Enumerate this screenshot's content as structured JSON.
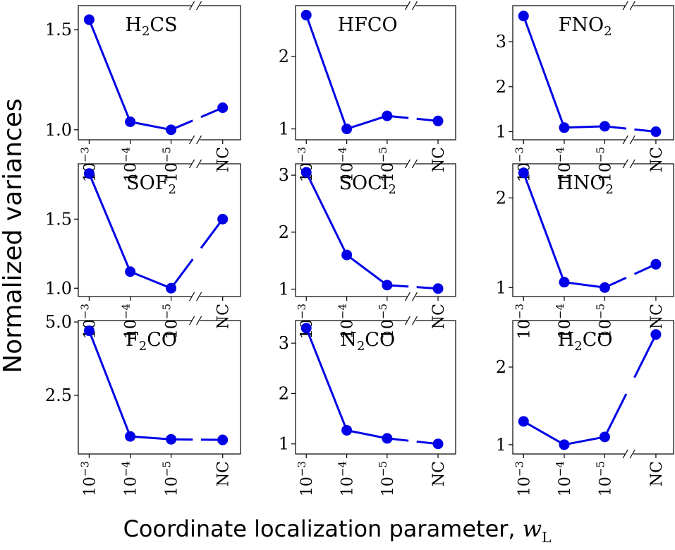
{
  "figure": {
    "ylabel": "Normalized variances",
    "xlabel": "Coordinate localization parameter,",
    "xlabel_var": "w",
    "xlabel_sub": "L"
  },
  "colors": {
    "series": "#0000e6",
    "axis": "#000000"
  },
  "x_tick_labels": [
    {
      "base": "10",
      "exp": "−3"
    },
    {
      "base": "10",
      "exp": "−4"
    },
    {
      "base": "10",
      "exp": "−5"
    },
    {
      "base": "NC",
      "exp": ""
    }
  ],
  "chart_data": [
    {
      "type": "line",
      "title_main": "H",
      "title_sub": "2",
      "title_rest": "CS",
      "values": [
        1.55,
        1.04,
        1.0,
        1.11
      ],
      "ylim": [
        0.95,
        1.62
      ],
      "yticks": [
        1.0,
        1.5
      ],
      "ytick_labels": [
        "1.0",
        "1.5"
      ],
      "break_marks": "top-bottom"
    },
    {
      "type": "line",
      "title_main": "HFCO",
      "title_sub": "",
      "title_rest": "",
      "values": [
        2.57,
        1.0,
        1.18,
        1.11
      ],
      "ylim": [
        0.85,
        2.7
      ],
      "yticks": [
        1,
        2
      ],
      "ytick_labels": [
        "1",
        "2"
      ],
      "break_marks": "top"
    },
    {
      "type": "line",
      "title_main": "FNO",
      "title_sub": "2",
      "title_rest": "",
      "values": [
        3.57,
        1.09,
        1.12,
        1.0
      ],
      "ylim": [
        0.82,
        3.8
      ],
      "yticks": [
        1,
        2,
        3
      ],
      "ytick_labels": [
        "1",
        "2",
        "3"
      ],
      "break_marks": "top-bottom"
    },
    {
      "type": "line",
      "title_main": "SOF",
      "title_sub": "2",
      "title_rest": "",
      "values": [
        1.83,
        1.12,
        1.0,
        1.5
      ],
      "ylim": [
        0.94,
        1.9
      ],
      "yticks": [
        1.0,
        1.5
      ],
      "ytick_labels": [
        "1.0",
        "1.5"
      ],
      "break_marks": "top-bottom"
    },
    {
      "type": "line",
      "title_main": "SOCl",
      "title_sub": "2",
      "title_rest": "",
      "values": [
        3.05,
        1.6,
        1.07,
        1.01
      ],
      "ylim": [
        0.87,
        3.2
      ],
      "yticks": [
        1,
        2,
        3
      ],
      "ytick_labels": [
        "1",
        "2",
        "3"
      ],
      "break_marks": "top-bottom"
    },
    {
      "type": "line",
      "title_main": "HNO",
      "title_sub": "2",
      "title_rest": "",
      "values": [
        2.28,
        1.06,
        1.0,
        1.26
      ],
      "ylim": [
        0.9,
        2.38
      ],
      "yticks": [
        1,
        2
      ],
      "ytick_labels": [
        "1",
        "2"
      ],
      "break_marks": "top"
    },
    {
      "type": "line",
      "title_main": "F",
      "title_sub": "2",
      "title_rest": "CO",
      "values": [
        4.7,
        1.1,
        1.0,
        0.98
      ],
      "ylim": [
        0.5,
        5.05
      ],
      "yticks": [
        2.5,
        5.0
      ],
      "ytick_labels": [
        "2.5",
        "5.0"
      ],
      "break_marks": "top"
    },
    {
      "type": "line",
      "title_main": "N",
      "title_sub": "2",
      "title_rest": "CO",
      "values": [
        3.3,
        1.27,
        1.11,
        1.0
      ],
      "ylim": [
        0.8,
        3.45
      ],
      "yticks": [
        1,
        2,
        3
      ],
      "ytick_labels": [
        "1",
        "2",
        "3"
      ],
      "break_marks": "top"
    },
    {
      "type": "line",
      "title_main": "H",
      "title_sub": "2",
      "title_rest": "CO",
      "values": [
        1.3,
        1.0,
        1.1,
        2.42
      ],
      "ylim": [
        0.88,
        2.6
      ],
      "yticks": [
        1,
        2
      ],
      "ytick_labels": [
        "1",
        "2"
      ],
      "break_marks": "bottom"
    }
  ]
}
